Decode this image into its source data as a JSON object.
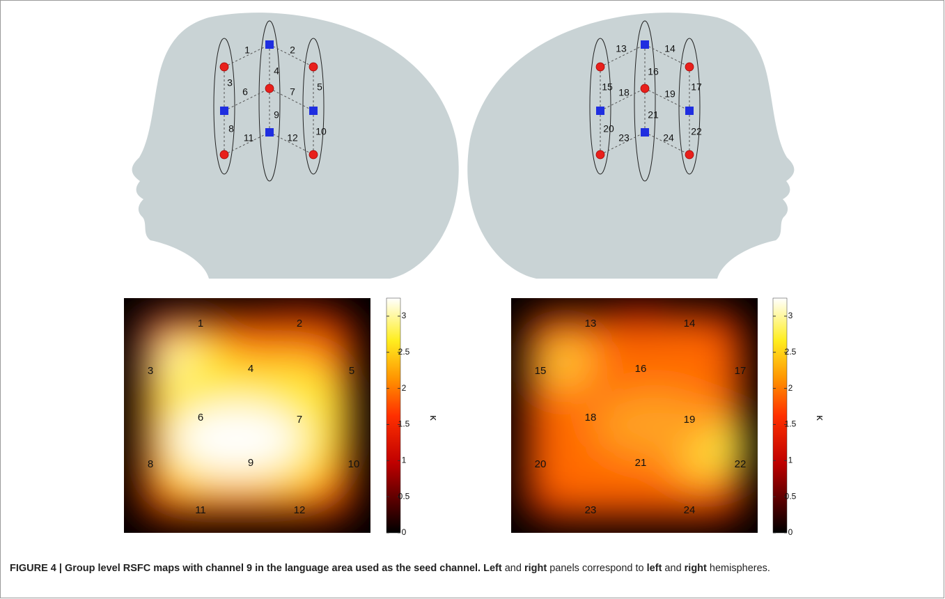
{
  "figure": {
    "left_probe": {
      "channels": [
        "1",
        "2",
        "3",
        "4",
        "5",
        "6",
        "7",
        "8",
        "9",
        "10",
        "11",
        "12"
      ]
    },
    "right_probe": {
      "channels": [
        "13",
        "14",
        "15",
        "16",
        "17",
        "18",
        "19",
        "20",
        "21",
        "22",
        "23",
        "24"
      ]
    },
    "left_map": {
      "channels": [
        "1",
        "2",
        "3",
        "4",
        "5",
        "6",
        "7",
        "8",
        "9",
        "10",
        "11",
        "12"
      ],
      "colorbar": {
        "range": [
          0,
          3.25
        ],
        "ticks": [
          0,
          0.5,
          1,
          1.5,
          2,
          2.5,
          3
        ],
        "label": "κ"
      }
    },
    "right_map": {
      "channels": [
        "13",
        "14",
        "15",
        "16",
        "17",
        "18",
        "19",
        "20",
        "21",
        "22",
        "23",
        "24"
      ],
      "colorbar": {
        "range": [
          0,
          3.25
        ],
        "ticks": [
          0,
          0.5,
          1,
          1.5,
          2,
          2.5,
          3
        ],
        "label": "κ"
      }
    },
    "caption": {
      "parts": [
        "FIGURE 4 | Group level RSFC maps with channel 9 in the language area used as the seed channel. ",
        "Left",
        " and ",
        "right",
        " panels correspond to ",
        "left",
        " and ",
        "right",
        " hemispheres."
      ]
    }
  }
}
